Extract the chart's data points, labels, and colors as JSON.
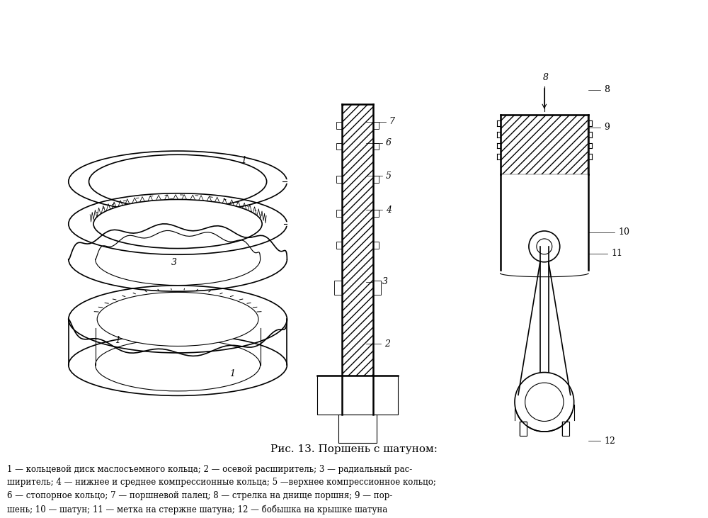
{
  "title": "Рис. 13. Поршень с шатуном:",
  "caption_line1": "1 — кольцевой диск маслосъемного кольца; 2 — осевой расширитель; 3 — радиальный рас-",
  "caption_line2": "ширитель; 4 — нижнее и среднее компрессионные кольца; 5 —верхнее компрессионное кольцо;",
  "caption_line3": "6 — стопорное кольцо; 7 — поршневой палец; 8 — стрелка на днище поршня; 9 — пор-",
  "caption_line4": "шень; 10 — шатун; 11 — метка на стержне шатуна; 12 — бобышка на крышке шатуна",
  "bg_color": "#ffffff",
  "line_color": "#000000",
  "hatch_color": "#000000",
  "figsize": [
    10.0,
    7.31
  ],
  "dpi": 100
}
